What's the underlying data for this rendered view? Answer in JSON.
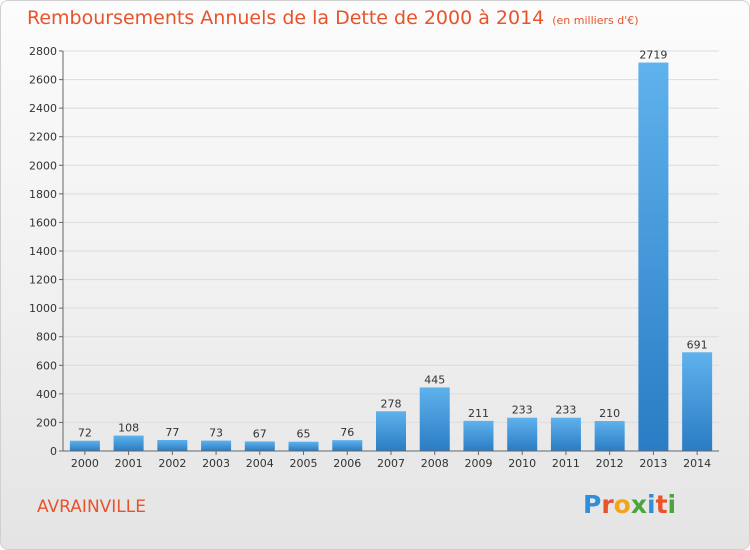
{
  "title": "Remboursements Annuels de la Dette de 2000 à 2014",
  "unit": "(en milliers d'€)",
  "commune": "AVRAINVILLE",
  "logo": {
    "letters": [
      "P",
      "r",
      "o",
      "x",
      "i",
      "t",
      "i"
    ],
    "colors": [
      "#2f8fd8",
      "#e8532a",
      "#f2a51a",
      "#4aa63c",
      "#2f8fd8",
      "#e8532a",
      "#4aa63c"
    ]
  },
  "chart_data": {
    "type": "bar",
    "categories": [
      "2000",
      "2001",
      "2002",
      "2003",
      "2004",
      "2005",
      "2006",
      "2007",
      "2008",
      "2009",
      "2010",
      "2011",
      "2012",
      "2013",
      "2014"
    ],
    "values": [
      72,
      108,
      77,
      73,
      67,
      65,
      76,
      278,
      445,
      211,
      233,
      233,
      210,
      2719,
      691
    ],
    "ylim": [
      0,
      2800
    ],
    "yticks": [
      0,
      200,
      400,
      600,
      800,
      1000,
      1200,
      1400,
      1600,
      1800,
      2000,
      2200,
      2400,
      2600,
      2800
    ],
    "grid": true,
    "bar_color": "#3a8fd6",
    "title_color": "#e8532a"
  }
}
